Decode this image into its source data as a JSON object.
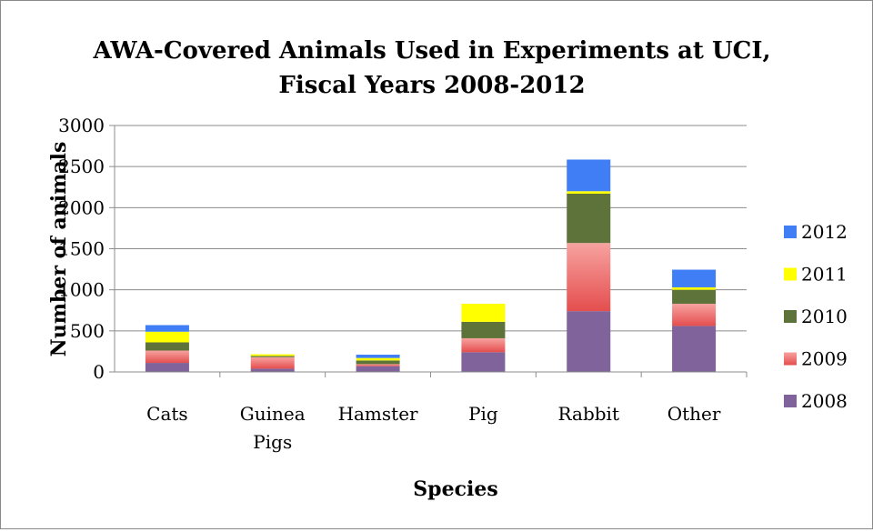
{
  "chart_data": {
    "type": "bar",
    "stacked": true,
    "title_line1": "AWA-Covered Animals Used in Experiments at UCI,",
    "title_line2": "Fiscal Years 2008-2012",
    "xlabel": "Species",
    "ylabel": "Number of animals",
    "ylim": [
      0,
      3000
    ],
    "yticks": [
      0,
      500,
      1000,
      1500,
      2000,
      2500,
      3000
    ],
    "categories": [
      [
        "Cats"
      ],
      [
        "Guinea",
        "Pigs"
      ],
      [
        "Hamster"
      ],
      [
        "Pig"
      ],
      [
        "Rabbit"
      ],
      [
        "Other"
      ]
    ],
    "series": [
      {
        "name": "2008",
        "color": "#7f639a",
        "values": [
          110,
          40,
          70,
          240,
          740,
          560
        ]
      },
      {
        "name": "2009",
        "color": "#ef8a8a",
        "values": [
          150,
          140,
          25,
          170,
          830,
          270
        ]
      },
      {
        "name": "2010",
        "color": "#5e7339",
        "values": [
          100,
          15,
          45,
          200,
          600,
          170
        ]
      },
      {
        "name": "2011",
        "color": "#ffff00",
        "values": [
          130,
          20,
          30,
          220,
          30,
          30
        ]
      },
      {
        "name": "2012",
        "color": "#3f7ef5",
        "values": [
          80,
          0,
          40,
          0,
          385,
          215
        ]
      }
    ],
    "legend_position": "right",
    "gridlines": true
  }
}
